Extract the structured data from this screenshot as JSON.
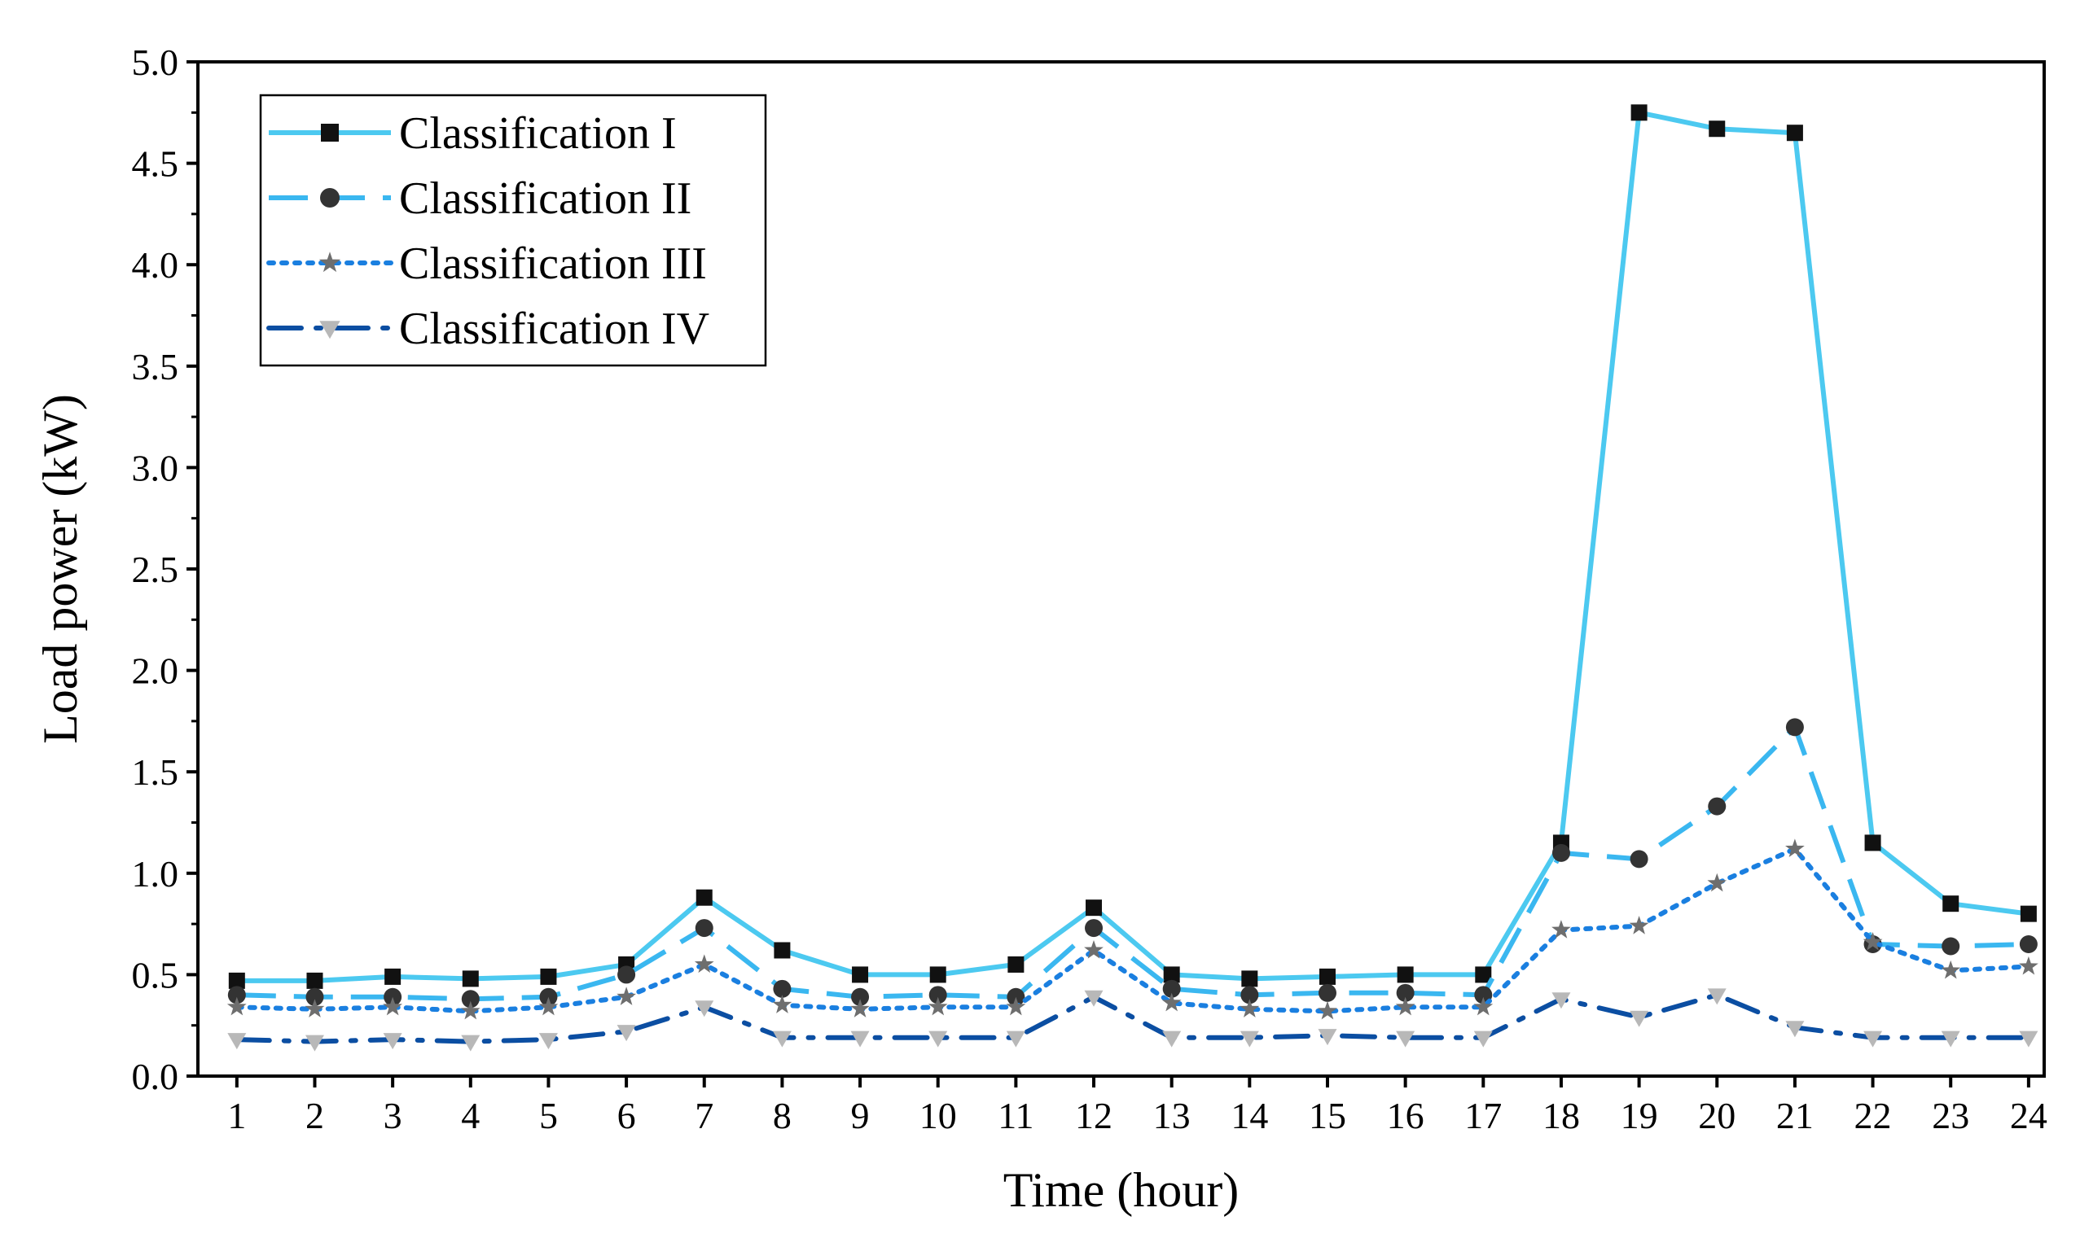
{
  "chart_data": {
    "type": "line",
    "title": "",
    "xlabel": "Time (hour)",
    "ylabel": "Load power (kW)",
    "x": [
      1,
      2,
      3,
      4,
      5,
      6,
      7,
      8,
      9,
      10,
      11,
      12,
      13,
      14,
      15,
      16,
      17,
      18,
      19,
      20,
      21,
      22,
      23,
      24
    ],
    "ylim": [
      0.0,
      5.0
    ],
    "yticks": [
      "0.0",
      "0.5",
      "1.0",
      "1.5",
      "2.0",
      "2.5",
      "3.0",
      "3.5",
      "4.0",
      "4.5",
      "5.0"
    ],
    "grid": false,
    "legend_position": "top-left",
    "series": [
      {
        "name": "Classification I",
        "color": "#4cc9f0",
        "line_style": "solid",
        "marker": "square",
        "marker_color": "#111111",
        "values": [
          0.47,
          0.47,
          0.49,
          0.48,
          0.49,
          0.55,
          0.88,
          0.62,
          0.5,
          0.5,
          0.55,
          0.83,
          0.5,
          0.48,
          0.49,
          0.5,
          0.5,
          1.15,
          4.75,
          4.67,
          4.65,
          1.15,
          0.85,
          0.8
        ]
      },
      {
        "name": "Classification II",
        "color": "#3ab7f0",
        "line_style": "dash",
        "marker": "circle",
        "marker_color": "#333333",
        "values": [
          0.4,
          0.39,
          0.39,
          0.38,
          0.39,
          0.5,
          0.73,
          0.43,
          0.39,
          0.4,
          0.39,
          0.73,
          0.43,
          0.4,
          0.41,
          0.41,
          0.4,
          1.1,
          1.07,
          1.33,
          1.72,
          0.65,
          0.64,
          0.65
        ]
      },
      {
        "name": "Classification III",
        "color": "#1a7fe0",
        "line_style": "dot",
        "marker": "star",
        "marker_color": "#6e6e6e",
        "values": [
          0.34,
          0.33,
          0.34,
          0.32,
          0.34,
          0.39,
          0.55,
          0.35,
          0.33,
          0.34,
          0.34,
          0.62,
          0.36,
          0.33,
          0.32,
          0.34,
          0.34,
          0.72,
          0.74,
          0.95,
          1.12,
          0.66,
          0.52,
          0.54
        ]
      },
      {
        "name": "Classification IV",
        "color": "#0b4ea2",
        "line_style": "dashdot",
        "marker": "triangle-down",
        "marker_color": "#b8b8b8",
        "values": [
          0.18,
          0.17,
          0.18,
          0.17,
          0.18,
          0.22,
          0.34,
          0.19,
          0.19,
          0.19,
          0.19,
          0.39,
          0.19,
          0.19,
          0.2,
          0.19,
          0.19,
          0.38,
          0.29,
          0.4,
          0.24,
          0.19,
          0.19,
          0.19
        ]
      }
    ]
  }
}
